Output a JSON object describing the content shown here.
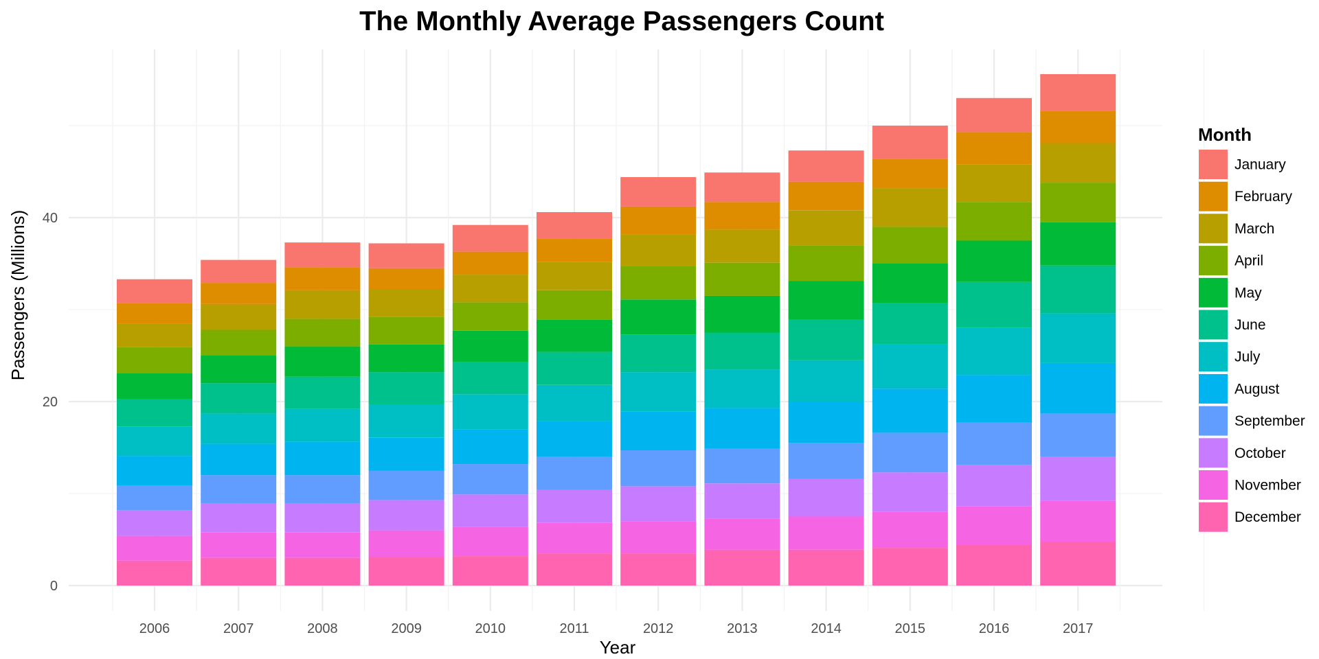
{
  "chart_data": {
    "type": "bar",
    "stacked": true,
    "title": "The Monthly Average Passengers Count",
    "xlabel": "Year",
    "ylabel": "Passengers (Millions)",
    "ylim": [
      0,
      58
    ],
    "yticks": [
      0,
      20,
      40
    ],
    "grid": true,
    "legend_title": "Month",
    "legend_position": "right",
    "categories": [
      "2006",
      "2007",
      "2008",
      "2009",
      "2010",
      "2011",
      "2012",
      "2013",
      "2014",
      "2015",
      "2016",
      "2017"
    ],
    "series": [
      {
        "name": "January",
        "color": "#F8766D",
        "values": [
          2.6,
          2.5,
          2.7,
          2.7,
          2.9,
          2.9,
          3.2,
          3.2,
          3.4,
          3.6,
          3.7,
          4.0
        ]
      },
      {
        "name": "February",
        "color": "#DE8C00",
        "values": [
          2.2,
          2.3,
          2.5,
          2.3,
          2.5,
          2.5,
          3.0,
          3.0,
          3.1,
          3.2,
          3.5,
          3.5
        ]
      },
      {
        "name": "March",
        "color": "#B79F00",
        "values": [
          2.6,
          2.8,
          3.1,
          3.0,
          3.0,
          3.1,
          3.5,
          3.6,
          3.8,
          4.2,
          4.1,
          4.3
        ]
      },
      {
        "name": "April",
        "color": "#7CAE00",
        "values": [
          2.8,
          2.8,
          3.0,
          3.0,
          3.1,
          3.2,
          3.6,
          3.6,
          3.9,
          4.0,
          4.2,
          4.3
        ]
      },
      {
        "name": "May",
        "color": "#00BA38",
        "values": [
          2.8,
          3.0,
          3.3,
          3.0,
          3.4,
          3.5,
          3.8,
          4.0,
          4.2,
          4.3,
          4.5,
          4.7
        ]
      },
      {
        "name": "June",
        "color": "#00C08B",
        "values": [
          3.0,
          3.3,
          3.5,
          3.5,
          3.5,
          3.6,
          4.1,
          4.0,
          4.4,
          4.5,
          5.0,
          5.2
        ]
      },
      {
        "name": "July",
        "color": "#00BFC4",
        "values": [
          3.2,
          3.3,
          3.6,
          3.6,
          3.8,
          3.9,
          4.3,
          4.2,
          4.5,
          4.8,
          5.1,
          5.4
        ]
      },
      {
        "name": "August",
        "color": "#00B4F0",
        "values": [
          3.2,
          3.4,
          3.6,
          3.6,
          3.8,
          3.9,
          4.2,
          4.4,
          4.5,
          4.8,
          5.2,
          5.5
        ]
      },
      {
        "name": "September",
        "color": "#619CFF",
        "values": [
          2.7,
          3.1,
          3.1,
          3.2,
          3.3,
          3.6,
          3.9,
          3.8,
          3.9,
          4.3,
          4.6,
          4.7
        ]
      },
      {
        "name": "October",
        "color": "#C77CFF",
        "values": [
          2.8,
          3.1,
          3.1,
          3.3,
          3.5,
          3.6,
          3.8,
          3.8,
          4.1,
          4.3,
          4.5,
          4.8
        ]
      },
      {
        "name": "November",
        "color": "#F564E3",
        "values": [
          2.7,
          2.8,
          2.8,
          2.9,
          3.2,
          3.3,
          3.5,
          3.4,
          3.6,
          3.9,
          4.2,
          4.5
        ]
      },
      {
        "name": "December",
        "color": "#FF64B0",
        "values": [
          2.7,
          3.0,
          3.0,
          3.1,
          3.2,
          3.5,
          3.5,
          3.9,
          3.9,
          4.1,
          4.4,
          4.7
        ]
      }
    ]
  }
}
